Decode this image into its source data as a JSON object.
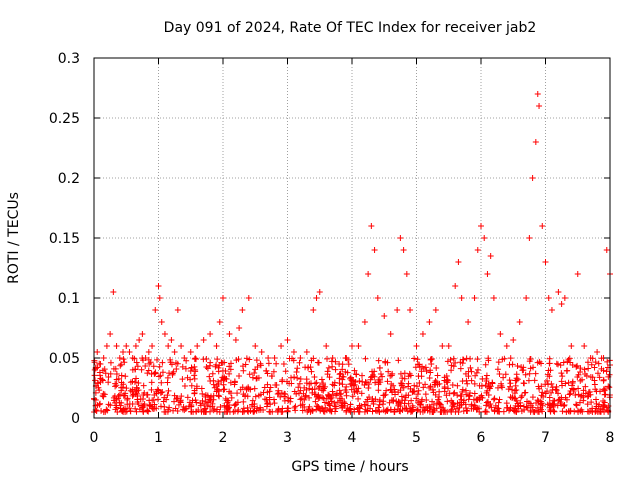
{
  "chart_data": {
    "type": "scatter",
    "title": "Day 091 of 2024, Rate Of TEC Index for receiver jab2",
    "xlabel": "GPS time / hours",
    "ylabel": "ROTI / TECUs",
    "xlim": [
      0,
      8
    ],
    "ylim": [
      0,
      0.3
    ],
    "xticks": [
      0,
      1,
      2,
      3,
      4,
      5,
      6,
      7,
      8
    ],
    "yticks": [
      0,
      0.05,
      0.1,
      0.15,
      0.2,
      0.25,
      0.3
    ],
    "xtick_labels": [
      "0",
      "1",
      "2",
      "3",
      "4",
      "5",
      "6",
      "7",
      "8"
    ],
    "ytick_labels": [
      "0",
      "0.05",
      "0.1",
      "0.15",
      "0.2",
      "0.25",
      "0.3"
    ],
    "grid": true,
    "marker": "+",
    "color": "#ff0000",
    "series": [
      {
        "name": "ROTI",
        "x": [
          0.05,
          0.1,
          0.15,
          0.2,
          0.25,
          0.3,
          0.35,
          0.4,
          0.45,
          0.5,
          0.55,
          0.6,
          0.65,
          0.7,
          0.75,
          0.8,
          0.85,
          0.9,
          0.95,
          1.0,
          1.02,
          1.05,
          1.1,
          1.15,
          1.2,
          1.25,
          1.3,
          1.35,
          1.4,
          1.5,
          1.6,
          1.7,
          1.8,
          1.9,
          1.95,
          2.0,
          2.1,
          2.2,
          2.25,
          2.3,
          2.4,
          2.5,
          2.6,
          2.7,
          2.8,
          2.9,
          3.0,
          3.1,
          3.2,
          3.3,
          3.4,
          3.45,
          3.5,
          3.6,
          3.7,
          3.8,
          3.9,
          4.0,
          4.1,
          4.2,
          4.25,
          4.3,
          4.35,
          4.4,
          4.5,
          4.6,
          4.7,
          4.75,
          4.8,
          4.85,
          4.9,
          5.0,
          5.1,
          5.2,
          5.3,
          5.4,
          5.5,
          5.6,
          5.65,
          5.7,
          5.8,
          5.9,
          5.95,
          6.0,
          6.05,
          6.1,
          6.15,
          6.2,
          6.3,
          6.4,
          6.5,
          6.6,
          6.7,
          6.75,
          6.8,
          6.85,
          6.88,
          6.9,
          6.95,
          7.0,
          7.05,
          7.1,
          7.2,
          7.25,
          7.3,
          7.4,
          7.5,
          7.6,
          7.7,
          7.8,
          7.9,
          7.95,
          8.0
        ],
        "y": [
          0.055,
          0.045,
          0.05,
          0.06,
          0.07,
          0.105,
          0.06,
          0.05,
          0.055,
          0.06,
          0.055,
          0.05,
          0.06,
          0.065,
          0.07,
          0.05,
          0.055,
          0.06,
          0.09,
          0.11,
          0.1,
          0.08,
          0.07,
          0.06,
          0.065,
          0.055,
          0.09,
          0.06,
          0.05,
          0.055,
          0.06,
          0.065,
          0.07,
          0.06,
          0.08,
          0.1,
          0.07,
          0.065,
          0.075,
          0.09,
          0.1,
          0.06,
          0.055,
          0.05,
          0.05,
          0.06,
          0.065,
          0.055,
          0.05,
          0.055,
          0.09,
          0.1,
          0.105,
          0.06,
          0.05,
          0.045,
          0.05,
          0.06,
          0.06,
          0.08,
          0.12,
          0.16,
          0.14,
          0.1,
          0.085,
          0.07,
          0.09,
          0.15,
          0.14,
          0.12,
          0.09,
          0.06,
          0.07,
          0.08,
          0.09,
          0.06,
          0.06,
          0.11,
          0.13,
          0.1,
          0.08,
          0.1,
          0.14,
          0.16,
          0.15,
          0.12,
          0.135,
          0.1,
          0.07,
          0.06,
          0.065,
          0.08,
          0.1,
          0.15,
          0.2,
          0.23,
          0.27,
          0.26,
          0.16,
          0.13,
          0.1,
          0.09,
          0.105,
          0.095,
          0.1,
          0.06,
          0.12,
          0.06,
          0.05,
          0.055,
          0.05,
          0.14,
          0.12
        ]
      }
    ],
    "background_noise": {
      "x_range": [
        0,
        8
      ],
      "y_range": [
        0.005,
        0.05
      ],
      "description": "dense low-level ROTI values"
    }
  }
}
